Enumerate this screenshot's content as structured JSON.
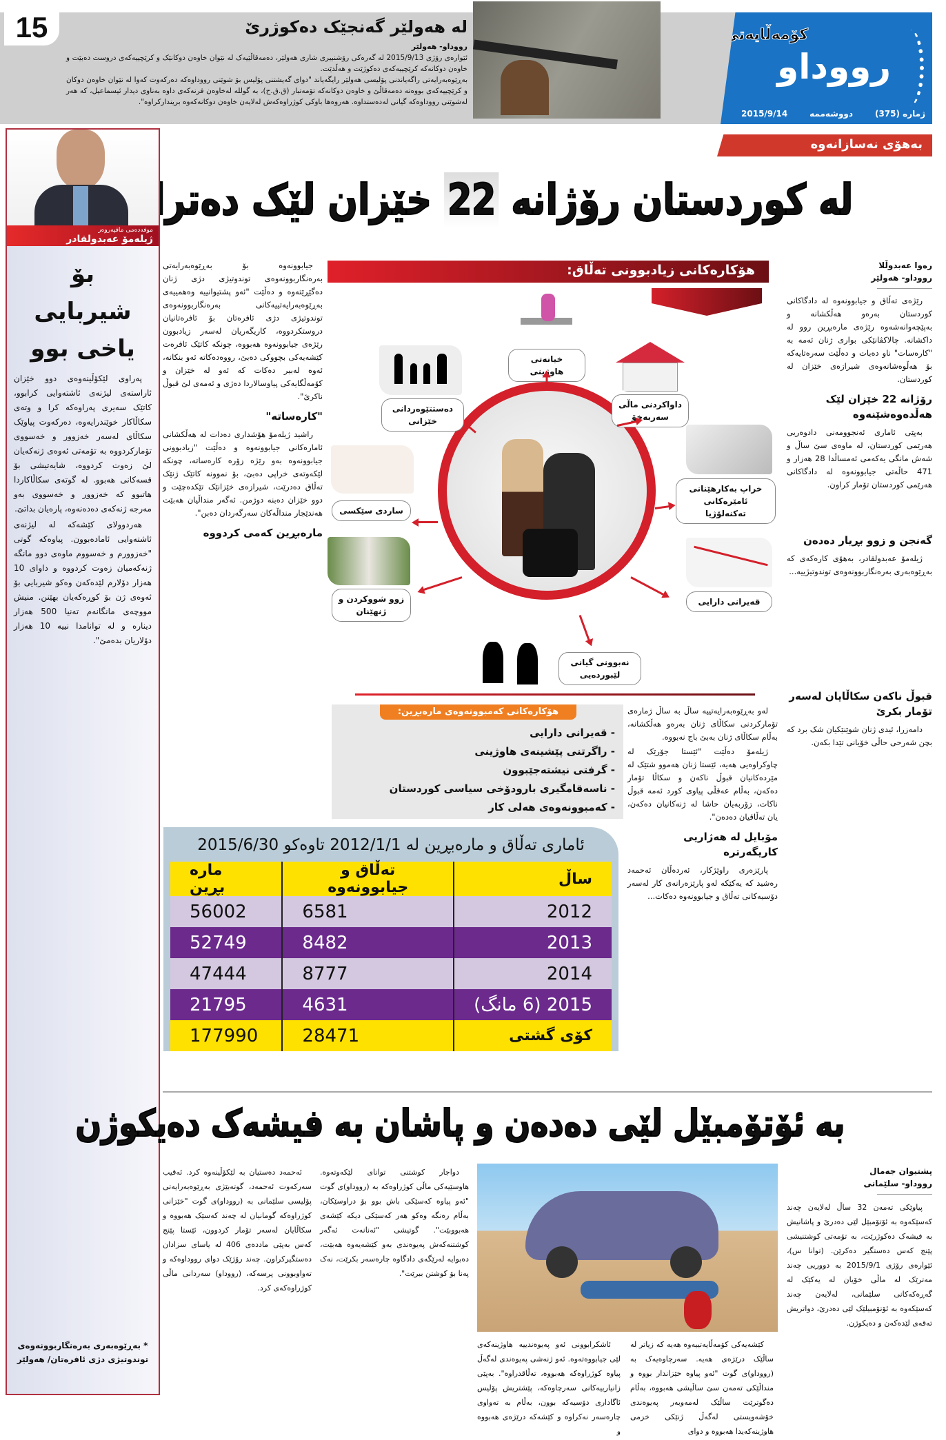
{
  "header": {
    "page_number": "15",
    "section": "کۆمەڵایەتی",
    "logo": "رووداو",
    "issue": "ژمارە (375)",
    "weekday": "دووشەممە",
    "date": "2015/9/14",
    "colors": {
      "logo_bg": "#1a73c4",
      "band_bg": "#cfcfcf",
      "banner_red": "#d0382c"
    }
  },
  "top_story": {
    "title": "لە هەولێر گەنجێک دەکوژرێ",
    "byline": "رووداو- هەولێر",
    "paragraphs": [
      "ئێوارەی رۆژی 2015/9/13 لە گەرەکی رۆشنبیری شاری هەولێر، دەمەقاڵێیەک لە نێوان خاوەن دوکانێک و کرێچییەکەی دروست دەبێت و خاوەن دوکانەکە کرێچییەکەی دەکوژێت و هەڵدێت.",
      "بەڕێوەبەرایەتی راگەیاندنی پۆلیسی هەولێر رایگەیاند \"دوای گەیشتنی پۆلیس بۆ شوێنی رووداوەکە دەرکەوت کەوا لە نێوان خاوەن دوکان و کرێچییەکەی بووەتە دەمەقاڵێ و خاوەن دوکانەکە تۆمەتبار (ق.ق.ح)، بە گوللە لەخاوەن فرنەکەی داوە بەناوی دیدار ئیسماعیل، کە هەر لەشوێنی رووداوەکە گیانی لەدەستداوە. هەروەها باوکی کوژراوەکەش لەلایەن خاوەن دوکانەکەوە بریندارکراوە\"."
    ]
  },
  "main_story": {
    "kicker": "بەهۆی نەسازانەوە",
    "headline_a": "لە کوردستان رۆژانە",
    "headline_num": "22",
    "headline_b": "خێزان لێک دەترازێن",
    "author": "رەوا عەبدوڵلا",
    "byline": "رووداو- هەولێر",
    "intro": "رێژەی تەڵاق و جیابوونەوە لە دادگاکانی کوردستان بەرەو هەڵکشانە و بەپێچەوانەشەوە رێژەی مارەبڕین روو لە داکشانە. چالاکڤانێکی بواری ژنان ئەمە بە \"کارەسات\" ناو دەبات و دەڵێت سەرەتایەکە بۆ هەڵوەشانەوەی شیرازەی خێزان لە کوردستان.",
    "sub1": "رۆژانە 22 خێزان لێک هەڵدەوەشێنەوە",
    "para1": "بەپێی ئاماری ئەنجوومەنی دادوەریی هەرێمی کوردستان، لە ماوەی سێ ساڵ و شەش مانگی یەکەمی ئەمساڵدا 28 هەزار و 471 حاڵەتی جیابوونەوە لە دادگاکانی هەرێمی کوردستان تۆمار کراون.",
    "sub2": "گەنجن و زوو بڕیار دەدەن",
    "para2": "ژیلەمۆ عەبدولقادر، بەهۆی کارەکەی کە بەڕێوەبەری بەرەنگاربوونەوەی توندوتیژییە...",
    "sub3": "قبوڵ ناکەن سکاڵایان لەسەر تۆمار بکرێ",
    "para3": "دامەزرا، ئیدی ژنان شوێنێکیان شک برد کە بچن شەرحی حاڵی خۆیانی تێدا بکەن.",
    "col2_p1": "جیابوونەوە بۆ بەڕێوەبەرایەتی بەرەنگاربوونەوەی توندوتیژی دژی ژنان دەگێڕێتەوە و دەڵێت \"ئەو پشتیوانییە وەهمییەی بەڕێوەبەرایەتییەکانی بەرەنگاربوونەوەی توندوتیژی دژی ئافرەتان بۆ ئافرەتانیان دروستکردووە، کاریگەریان لەسەر زیادبوون رێژەی جیابوونەوە هەبووە، چونکە کاتێک ئافرەت کێشەیەکی بچووکی دەبێ، رووەدەکاتە ئەو بنکانە، ئەوە لەبیر دەکات کە ئەو لە خێزان و کۆمەڵگایەکی پیاوسالاردا دەژی و ئەمەی لێ قبوڵ ناکرێ\".",
    "col2_sub1": "\"کارەساتە\"",
    "col2_p2": "راشید ژیلەمۆ هۆشداری دەدات لە هەڵکشانی ئامارەکانی جیابوونەوە و دەڵێت \"زیادبوونی جیابوونەوە بەو رێژە زۆرە کارەساتە، چونکە لێکەوتەی خراپی دەبێ، بۆ نموونە کاتێک ژنێک تەڵاق دەدرێت، شیرازەی خێزانێک تێکدەچێت و دوو خێزان دەبنە دوژمن. ئەگەر منداڵیان هەبێت هەندێجار منداڵەکان سەرگەردان دەبن\".",
    "col2_sub2": "مارەبڕین کەمی کردووە",
    "col3_p1": "لەو بەڕێوەبەرایەتییە ساڵ بە ساڵ ژمارەی تۆمارکردنی سکاڵای ژنان بەرەو هەڵکشانە، بەڵام سکاڵای ژنان بەبێ باج نەبووە.",
    "col3_p2": "ژیلەمۆ دەڵێت \"ئێستا جۆرێک لە چاوکراوەیی هەیە، ئێستا ژنان هەموو شتێک لە مێردەکانیان قبوڵ ناکەن و سکاڵا تۆمار دەکەن، بەڵام عەقڵی پیاوی کورد ئەمە قبوڵ ناکات، زۆربەیان حاشا لە ژنەکانیان دەکەن، یان تەڵاقیان دەدەن\".",
    "col3_sub": "مۆبایل لە هەژاریی کاریگەرترە",
    "col3_p3": "پارێزەری راوێژکار، ئەردەڵان ئەحمەد رەشید کە یەکێکە لەو پارێزەرانەی کار لەسەر دۆسیەکانی تەڵاق و جیابوونەوە دەکات..."
  },
  "infographic": {
    "title": "هۆکارەکانی زیادبوونی تەڵاق:",
    "causes": [
      "خیانەتی هاوژینی",
      "داواکردنی ماڵی سەربەخۆ",
      "خراپ بەکارهێنانی ئامێرەکانی تەکنەلۆژیا",
      "قەیرانی دارایی",
      "نەبوونی گیانی لێبوردەیی",
      "زوو شووکردن و ژنهێنان",
      "ساردی سێکسی",
      "دەستتێوەردانی خێزانی"
    ],
    "colors": {
      "ring": "#d3202a",
      "title_bg": "#6b0f14"
    }
  },
  "marriage_decline": {
    "title": "هۆکارەکانی کەمبوونەوەی مارەبڕین:",
    "items": [
      "- قەیرانی دارایی",
      "- راگرتنی پێشینەی هاوژینی",
      "- گرفتی نیشتەجێبوون",
      "- ناسەقامگیری بارودۆخی سیاسی کوردستان",
      "- کەمبوونەوەی هەلی کار"
    ],
    "colors": {
      "title_bg": "#f07f22"
    }
  },
  "stats_table": {
    "title": "ئاماری تەڵاق و مارەبڕین لە 2012/1/1 تاوەکو 2015/6/30",
    "headers": [
      "ساڵ",
      "تەڵاق و جیابوونەوە",
      "مارە بڕین"
    ],
    "rows": [
      [
        "2012",
        "6581",
        "56002"
      ],
      [
        "2013",
        "8482",
        "52749"
      ],
      [
        "2014",
        "8777",
        "47444"
      ],
      [
        "2015 (6 مانگ)",
        "4631",
        "21795"
      ]
    ],
    "total": [
      "کۆی گشتی",
      "28471",
      "177990"
    ],
    "colors": {
      "header": "#ffe100",
      "light": "#d4c8e0",
      "dark": "#6b2a8c",
      "box": "#b9ccd8"
    }
  },
  "column": {
    "role": "موفەدەمی مافپەروەر",
    "author": "ژیلەمۆ عەبدولقادر",
    "title": "بۆ شیربایی یاخی بوو",
    "paragraphs": [
      "پەراوی لێکۆڵینەوەی دوو خێزان ئاراستەی لیژنەی ئاشتەوایی کرابوو، کاتێک سەیری پەراوەکە کرا و وتەی سکاڵاکار خوێندرایەوە، دەرکەوت پیاوێک سکاڵای لەسەر خەزوور و خەسووی تۆمارکردووە بە تۆمەتی ئەوەی ژنەکەیان لێ زەوت کردووە، شایەتیشی بۆ قسەکانی هەبوو. لە گوتەی سکاڵاکاردا هاتبوو کە خەزوور و خەسووی بەو مەرجە ژنەکەی دەدەنەوە، پارەیان بداتێ.",
      "هەردوولای کێشەکە لە لیژنەی ئاشتەوایی ئامادەبوون. پیاوەکە گوتی \"خەزوورم و خەسووم ماوەی دوو مانگە ژنەکەمیان زەوت کردووە و داوای 10 هەزار دۆلارم لێدەکەن وەکو شیربایی بۆ ئەوەی ژن بۆ کوڕەکەیان بهێنن. منیش مووچەی مانگانەم تەنیا 500 هەزار دینارە و لە توانامدا نییە 10 هەزار دۆلاریان بدەمێ\"."
    ],
    "footnote": "* بەڕێوەبەری بەرەنگاربوونەوەی توندوتیژی دژی ئافرەتان/ هەولێر"
  },
  "bottom_story": {
    "headline": "بە ئۆتۆمبێل لێی دەدەن و پاشان بە فیشەک دەیکوژن",
    "author": "پشتیوان جەمال",
    "byline": "رووداو- سلێمانی",
    "col1": "پیاوێکی تەمەن 32 ساڵ لەلایەن چەند کەسێکەوە بە ئۆتۆمبێل لێی دەدرێ و پاشانیش بە فیشەک دەکوژرێت، بە تۆمەتی کوشتنیشی پێنج کەس دەستگیر دەکرێن. (توانا س)، ئێوارەی رۆژی 2015/9/1 بە دووریی چەند مەترێک لە ماڵی خۆیان لە یەکێک لە گەڕەکەکانی سلێمانی، لەلایەن چەند کەسێکەوە بە ئۆتۆمبیلێک لێی دەدرێ، دواتریش تەقەی لێدەکەن و دەیکوژن.",
    "col2": "کێشەیەکی کۆمەڵایەتییەوە هەیە کە زیاتر لە ساڵێک درێژەی هەیە. سەرچاوەیەک بە (رووداو)ی گوت \"ئەو پیاوە خێزاندار بووە و منداڵێکی تەمەن سێ ساڵیشی هەبووە، بەڵام دەگوترێت ساڵێک لەمەوبەر پەیوەندی خۆشەویستی لەگەڵ ژنێکی خزمی هاوژینەکەیدا هەبووە و دوای",
    "col3": "ئاشکرابوونی ئەو پەیوەندییە هاوژینەکەی لێی جیابووەتەوە. ئەو ژنەشی پەیوەندی لەگەڵ پیاوە کوژراوەکە هەبووە، تەڵاقدراوە\". بەپێی زانیارییەکانی سەرچاوەکە، پێشتریش پۆلیس ئاگاداری دۆسیەکە بوون، بەڵام بە تەواوی چارەسەر نەکراوە و کێشەکە درێژەی هەبووە و",
    "col4": "دواجار کوشتنی توانای لێکەوتەوە. هاوسێیەکی ماڵی کوژراوەکە بە (رووداو)ی گوت \"ئەو پیاوە کەسێکی باش بوو بۆ دراوسێکان، بەڵام رەنگە وەکو هەر کەسێکی دیکە کێشەی هەبووبێت\". گوتیشی \"ئەنانەت ئەگەر کوشتنەکەش پەیوەندی بەو کێشەیەوە هەبێت، دەبوایە لەرێگەی دادگاوە چارەسەر بکرێت، نەک پەنا بۆ کوشتن ببرێت\".",
    "col5": "ئەحمەد دەستیان بە لێکۆڵینەوە کرد. ئەقیب سەرکەوت ئەحمەد، گوتەبێژی بەڕێوەبەرایەتی پۆلیسی سلێمانی بە (رووداو)ی گوت \"خێزانی کوژراوەکە گومانیان لە چەند کەسێک هەبووە و سکاڵایان لەسەر تۆمار کردوون، ئێستا پێنج کەس بەپێی ماددەی 406 لە یاسای سزادان دەستگیرکراون. چەند رۆژێک دوای رووداوەکە و تەواوبوونی پرسەکە، (رووداو) سەردانی ماڵی کوژراوەکەی کرد."
  }
}
